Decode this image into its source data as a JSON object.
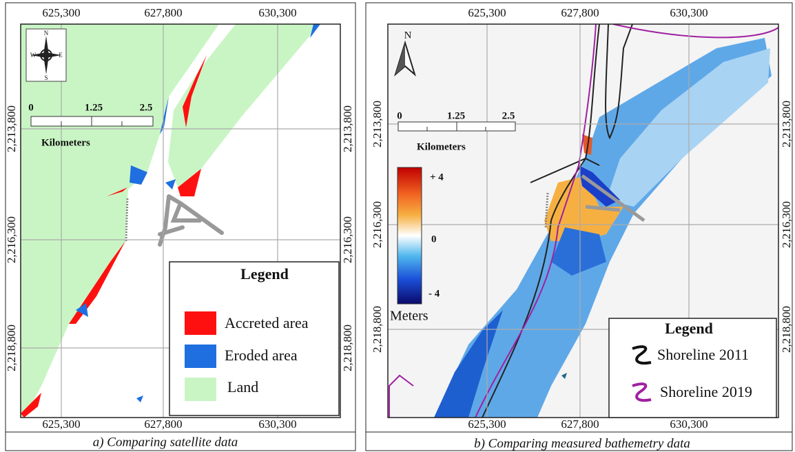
{
  "panels": [
    {
      "x_ticks": [
        "625,300",
        "627,800",
        "630,300"
      ],
      "y_ticks": [
        "2,213,800",
        "2,216,300",
        "2,218,800"
      ],
      "compass": {
        "n": "N",
        "s": "S",
        "e": "E",
        "w": "W"
      },
      "scale_bar": {
        "ticks": [
          "0",
          "1.25",
          "2.5"
        ],
        "unit": "Kilometers"
      },
      "legend": {
        "title": "Legend",
        "items": [
          "Accreted area",
          "Eroded area",
          "Land"
        ]
      },
      "caption": "a) Comparing satellite data"
    },
    {
      "x_ticks": [
        "625,300",
        "627,800",
        "630,300"
      ],
      "y_ticks": [
        "2,213,800",
        "2,216,300",
        "2,218,800"
      ],
      "north": "N",
      "scale_bar": {
        "ticks": [
          "0",
          "1.25",
          "2.5"
        ],
        "unit": "Kilometers"
      },
      "color_bar": {
        "labels": [
          "+ 4",
          "0",
          "- 4"
        ],
        "unit": "Meters"
      },
      "legend": {
        "title": "Legend",
        "items": [
          "Shoreline 2011",
          "Shoreline 2019"
        ]
      },
      "caption": "b) Comparing measured bathemetry data"
    }
  ]
}
